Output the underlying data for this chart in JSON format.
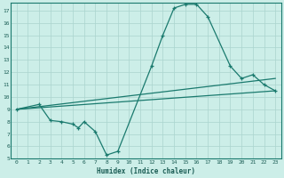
{
  "xlabel": "Humidex (Indice chaleur)",
  "bg_color": "#cceee8",
  "grid_color": "#aad4ce",
  "line_color": "#1a7a6e",
  "font_color": "#1a5c54",
  "xlim": [
    -0.5,
    23.5
  ],
  "ylim": [
    5,
    17.6
  ],
  "xticks": [
    0,
    1,
    2,
    3,
    4,
    5,
    6,
    7,
    8,
    9,
    10,
    11,
    12,
    13,
    14,
    15,
    16,
    17,
    18,
    19,
    20,
    21,
    22,
    23
  ],
  "yticks": [
    5,
    6,
    7,
    8,
    9,
    10,
    11,
    12,
    13,
    14,
    15,
    16,
    17
  ],
  "curve_x": [
    0,
    2,
    3,
    4,
    5,
    5.5,
    6,
    7,
    8,
    9,
    12,
    13,
    14,
    15,
    16,
    17,
    19,
    20,
    21,
    22,
    23
  ],
  "curve_y": [
    9.0,
    9.4,
    8.1,
    8.0,
    7.8,
    7.5,
    8.0,
    7.2,
    5.3,
    5.6,
    12.5,
    15.0,
    17.2,
    17.5,
    17.5,
    16.5,
    12.5,
    11.5,
    11.8,
    11.0,
    10.5
  ],
  "line2_x": [
    0,
    23
  ],
  "line2_y": [
    9.0,
    11.5
  ],
  "line3_x": [
    0,
    23
  ],
  "line3_y": [
    9.0,
    10.5
  ]
}
